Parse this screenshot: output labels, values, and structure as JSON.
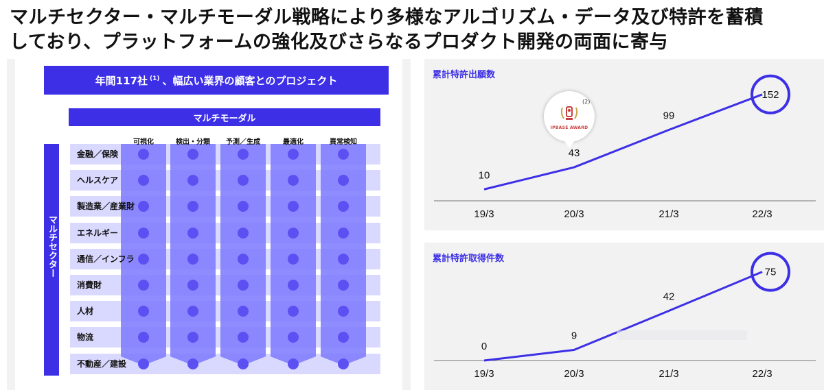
{
  "headline": {
    "line1": "マルチセクター・マルチモーダル戦略により多様なアルゴリズム・データ及び特許を蓄積",
    "line2": "しており、プラットフォームの強化及びさらなるプロダクト開発の両面に寄与"
  },
  "matrix": {
    "banner_text": "年間117社",
    "banner_sup": "(1)",
    "banner_text2": "、幅広い業界の顧客とのプロジェクト",
    "multimodal_label": "マルチモーダル",
    "multisector_label": "マルチセクター",
    "columns": [
      "可視化",
      "検出・分類",
      "予測／生成",
      "最適化",
      "異常検知"
    ],
    "rows": [
      "金融／保険",
      "ヘルスケア",
      "製造業／産業財",
      "エネルギー",
      "通信／インフラ",
      "消費財",
      "人材",
      "物流",
      "不動産／建設"
    ]
  },
  "award": {
    "text": "IPBASE AWARD",
    "note": "(2)",
    "icon": "trophy-icon"
  },
  "colors": {
    "accent": "#3c2fe6",
    "column_fill": "#7b78ff",
    "row_fill": "#d9d9ff",
    "dot": "#5c50f2"
  },
  "chart_data": [
    {
      "type": "line",
      "title": "累計特許出願数",
      "categories": [
        "19/3",
        "20/3",
        "21/3",
        "22/3"
      ],
      "values": [
        10,
        43,
        99,
        152
      ],
      "ylim": [
        0,
        160
      ],
      "highlight_index": 3,
      "grid": false
    },
    {
      "type": "line",
      "title": "累計特許取得件数",
      "categories": [
        "19/3",
        "20/3",
        "21/3",
        "22/3"
      ],
      "values": [
        0,
        9,
        42,
        75
      ],
      "ylim": [
        0,
        80
      ],
      "highlight_index": 3,
      "grid": false
    }
  ]
}
